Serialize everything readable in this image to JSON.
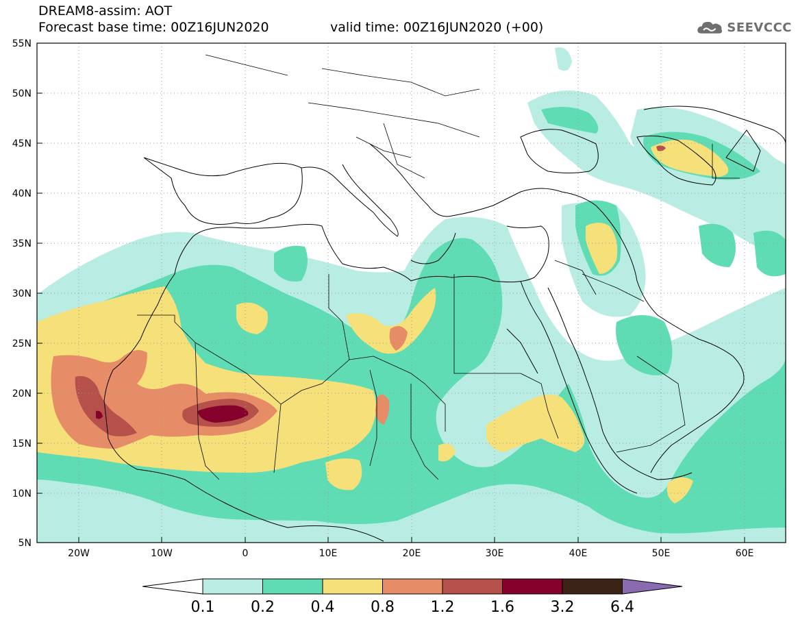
{
  "header": {
    "title": "DREAM8-assim: AOT",
    "base_time": "Forecast base time: 00Z16JUN2020",
    "valid_time": "valid time: 00Z16JUN2020 (+00)"
  },
  "logo": {
    "text": "SEEVCCC",
    "icon": "cloud-icon"
  },
  "map": {
    "lat_labels": [
      "55N",
      "50N",
      "45N",
      "40N",
      "35N",
      "30N",
      "25N",
      "20N",
      "15N",
      "10N",
      "5N"
    ],
    "lon_labels": [
      "20W",
      "10W",
      "0",
      "10E",
      "20E",
      "30E",
      "40E",
      "50E",
      "60E"
    ],
    "lat_range": [
      5,
      55
    ],
    "lon_range": [
      -25,
      65
    ]
  },
  "colorbar": {
    "levels": [
      "0.1",
      "0.2",
      "0.4",
      "0.8",
      "1.2",
      "1.6",
      "3.2",
      "6.4"
    ],
    "colors": [
      "#b9ede4",
      "#5fdcb4",
      "#f5e07a",
      "#e68c66",
      "#b5504a",
      "#85002a",
      "#3b2416"
    ],
    "under_color": "#ffffff",
    "over_color": "#8a6bb0"
  }
}
